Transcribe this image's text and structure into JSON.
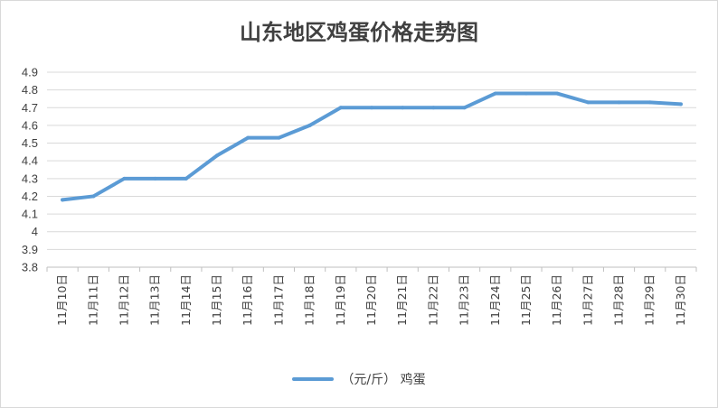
{
  "chart_data": {
    "type": "line",
    "title": "山东地区鸡蛋价格走势图",
    "categories": [
      "11月10日",
      "11月11日",
      "11月12日",
      "11月13日",
      "11月14日",
      "11月15日",
      "11月16日",
      "11月17日",
      "11月18日",
      "11月19日",
      "11月20日",
      "11月21日",
      "11月22日",
      "11月23日",
      "11月24日",
      "11月25日",
      "11月26日",
      "11月27日",
      "11月28日",
      "11月29日",
      "11月30日"
    ],
    "series": [
      {
        "name": "（元/斤） 鸡蛋",
        "values": [
          4.18,
          4.2,
          4.3,
          4.3,
          4.3,
          4.43,
          4.53,
          4.53,
          4.6,
          4.7,
          4.7,
          4.7,
          4.7,
          4.7,
          4.78,
          4.78,
          4.78,
          4.73,
          4.73,
          4.73,
          4.72
        ]
      }
    ],
    "yticks": [
      "3.8",
      "3.9",
      "4",
      "4.1",
      "4.2",
      "4.3",
      "4.4",
      "4.5",
      "4.6",
      "4.7",
      "4.8",
      "4.9"
    ],
    "ylim": [
      3.8,
      4.9
    ],
    "grid": true,
    "legend_position": "bottom",
    "series_color": "#5b9bd5"
  }
}
